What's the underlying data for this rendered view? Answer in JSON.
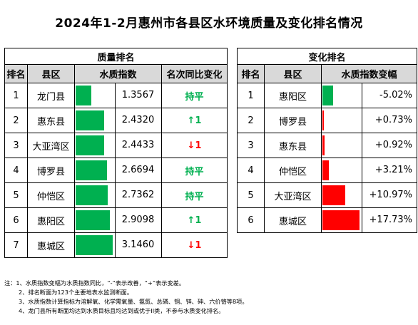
{
  "title": "2024年1-2月惠州市各县区水环境质量及变化排名情况",
  "quality": {
    "section_title": "质量排名",
    "headers": [
      "排名",
      "县区",
      "水质指数",
      "名次同比变化"
    ],
    "max_index": 3.146,
    "rows": [
      {
        "rank": "1",
        "district": "龙门县",
        "index": 1.3567,
        "index_text": "1.3567",
        "change": "持平",
        "change_type": "same"
      },
      {
        "rank": "2",
        "district": "惠东县",
        "index": 2.432,
        "index_text": "2.4320",
        "change": "↑1",
        "change_type": "up"
      },
      {
        "rank": "3",
        "district": "大亚湾区",
        "index": 2.4433,
        "index_text": "2.4433",
        "change": "↓1",
        "change_type": "down"
      },
      {
        "rank": "4",
        "district": "博罗县",
        "index": 2.6694,
        "index_text": "2.6694",
        "change": "持平",
        "change_type": "same"
      },
      {
        "rank": "5",
        "district": "仲恺区",
        "index": 2.7362,
        "index_text": "2.7362",
        "change": "持平",
        "change_type": "same"
      },
      {
        "rank": "6",
        "district": "惠阳区",
        "index": 2.9098,
        "index_text": "2.9098",
        "change": "↑1",
        "change_type": "up"
      },
      {
        "rank": "7",
        "district": "惠城区",
        "index": 3.146,
        "index_text": "3.1460",
        "change": "↓1",
        "change_type": "down"
      }
    ]
  },
  "change": {
    "section_title": "变化排名",
    "headers": [
      "排名",
      "县区",
      "水质指数变幅"
    ],
    "max_abs": 17.73,
    "rows": [
      {
        "rank": "1",
        "district": "惠阳区",
        "pct": -5.02,
        "pct_text": "-5.02%"
      },
      {
        "rank": "2",
        "district": "博罗县",
        "pct": 0.73,
        "pct_text": "+0.73%"
      },
      {
        "rank": "3",
        "district": "惠东县",
        "pct": 0.92,
        "pct_text": "+0.92%"
      },
      {
        "rank": "4",
        "district": "仲恺区",
        "pct": 3.21,
        "pct_text": "+3.21%"
      },
      {
        "rank": "5",
        "district": "大亚湾区",
        "pct": 10.97,
        "pct_text": "+10.97%"
      },
      {
        "rank": "6",
        "district": "惠城区",
        "pct": 17.73,
        "pct_text": "+17.73%"
      }
    ]
  },
  "colors": {
    "green": "#00b050",
    "red": "#ff0000",
    "header_gray": "#d9d9d9"
  },
  "notes": [
    "注：1、水质指数变幅为水质指数同比，“-”表示改善，“+”表示变差。",
    "2、排名断面为123个主要地表水监测断面。",
    "3、水质指数计算指标为溶解氧、化学需氧量、氨氮、总磷、铜、锌、砷、六价铬等8项。",
    "4、龙门县所有断面均达到水质目标且均达到或优于II类，不参与水质变化排名。"
  ]
}
